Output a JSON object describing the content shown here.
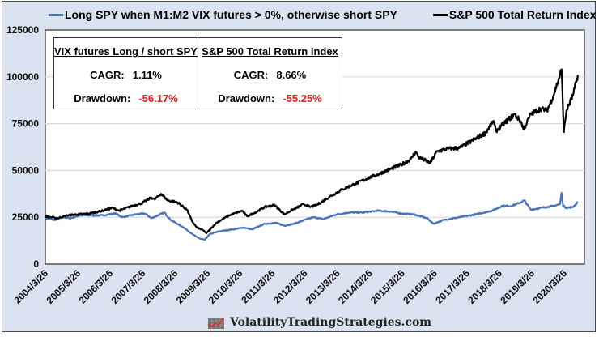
{
  "chart_data": {
    "type": "line",
    "title": "",
    "xlabel": "",
    "ylabel": "",
    "ylim": [
      0,
      125000
    ],
    "yticks": [
      0,
      25000,
      50000,
      75000,
      100000,
      125000
    ],
    "ytick_labels": [
      "0",
      "25000",
      "50000",
      "75000",
      "100000",
      "125000"
    ],
    "xlim": [
      2004.23,
      2020.85
    ],
    "xticks": [
      2004.23,
      2005.23,
      2006.23,
      2007.23,
      2008.23,
      2009.23,
      2010.23,
      2011.23,
      2012.23,
      2013.23,
      2014.23,
      2015.23,
      2016.23,
      2017.23,
      2018.23,
      2019.23,
      2020.23
    ],
    "xtick_labels": [
      "2004/3/26",
      "2005/3/26",
      "2006/3/26",
      "2007/3/26",
      "2008/3/26",
      "2009/3/26",
      "2010/3/26",
      "2011/3/26",
      "2012/3/26",
      "2013/3/26",
      "2014/3/26",
      "2015/3/26",
      "2016/3/26",
      "2017/3/26",
      "2018/3/26",
      "2019/3/26",
      "2020/3/26"
    ],
    "grid": "horizontal",
    "legend_position": "top",
    "series": [
      {
        "name": "Long SPY when M1:M2 VIX futures > 0%, otherwise short SPY",
        "color": "#4a72b8",
        "x": [
          2004.23,
          2004.5,
          2004.8,
          2005.0,
          2005.3,
          2005.6,
          2006.0,
          2006.4,
          2006.6,
          2007.0,
          2007.3,
          2007.5,
          2007.9,
          2008.1,
          2008.5,
          2008.8,
          2009.0,
          2009.15,
          2009.3,
          2009.6,
          2010.0,
          2010.35,
          2010.6,
          2011.0,
          2011.35,
          2011.6,
          2011.9,
          2012.3,
          2012.5,
          2012.8,
          2013.2,
          2013.6,
          2014.0,
          2014.5,
          2014.9,
          2015.2,
          2015.6,
          2016.0,
          2016.2,
          2016.5,
          2017.0,
          2017.5,
          2018.0,
          2018.2,
          2018.3,
          2018.6,
          2018.9,
          2019.0,
          2019.2,
          2019.5,
          2019.9,
          2020.1,
          2020.15,
          2020.2,
          2020.3,
          2020.5,
          2020.65
        ],
        "values": [
          24500,
          23500,
          25000,
          24500,
          26000,
          26000,
          26000,
          27000,
          25000,
          26500,
          27000,
          24500,
          27500,
          23500,
          19500,
          15500,
          13500,
          13000,
          16000,
          17500,
          18500,
          19500,
          18500,
          21500,
          22000,
          20500,
          21500,
          24000,
          25000,
          24000,
          26500,
          27500,
          27500,
          28500,
          28000,
          27000,
          26500,
          24500,
          21500,
          23500,
          25000,
          26500,
          28500,
          30000,
          31000,
          31000,
          33000,
          34000,
          29000,
          30000,
          31000,
          32000,
          38000,
          31000,
          30000,
          30500,
          33000
        ]
      },
      {
        "name": "S&P 500 Total Return Index",
        "color": "#000000",
        "x": [
          2004.23,
          2004.6,
          2004.9,
          2005.2,
          2005.6,
          2006.0,
          2006.3,
          2006.5,
          2006.9,
          2007.2,
          2007.5,
          2007.6,
          2007.8,
          2008.0,
          2008.3,
          2008.6,
          2008.75,
          2008.9,
          2009.1,
          2009.2,
          2009.5,
          2009.9,
          2010.3,
          2010.45,
          2010.7,
          2011.0,
          2011.3,
          2011.6,
          2011.8,
          2012.2,
          2012.4,
          2012.6,
          2013.0,
          2013.4,
          2013.8,
          2014.2,
          2014.5,
          2014.9,
          2015.2,
          2015.5,
          2015.65,
          2015.75,
          2016.1,
          2016.3,
          2016.6,
          2017.0,
          2017.4,
          2017.8,
          2018.05,
          2018.12,
          2018.3,
          2018.7,
          2018.9,
          2018.98,
          2019.2,
          2019.5,
          2019.7,
          2019.9,
          2020.1,
          2020.15,
          2020.22,
          2020.3,
          2020.5,
          2020.65
        ],
        "values": [
          25500,
          24500,
          26000,
          26500,
          27000,
          28500,
          30000,
          28500,
          31000,
          32500,
          35500,
          34500,
          37500,
          34000,
          33000,
          29000,
          23000,
          19500,
          18000,
          16500,
          22000,
          26000,
          28500,
          25500,
          27500,
          30500,
          31500,
          26500,
          28500,
          32000,
          30500,
          31500,
          36000,
          40000,
          43000,
          46000,
          48000,
          51000,
          53000,
          56000,
          60000,
          57000,
          54000,
          60000,
          61500,
          62000,
          66000,
          70000,
          76500,
          71000,
          74000,
          80000,
          76000,
          72000,
          80000,
          83000,
          82000,
          90000,
          101000,
          104000,
          70500,
          82000,
          90000,
          101000
        ]
      }
    ],
    "annotations": {
      "stats_table": [
        {
          "title": "VIX futures Long / short SPY",
          "cagr": "1.11%",
          "drawdown": "-56.17%"
        },
        {
          "title": "S&P 500 Total Return Index",
          "cagr": "8.66%",
          "drawdown": "-55.25%"
        }
      ]
    }
  },
  "stats": {
    "cagr_label": "CAGR:",
    "drawdown_label": "Drawdown:",
    "left_title": "VIX futures Long / short SPY",
    "left_cagr": "1.11%",
    "left_drawdown": "-56.17%",
    "right_title": "S&P 500 Total Return Index",
    "right_cagr": "8.66%",
    "right_drawdown": "-55.25%"
  },
  "legend": {
    "series_0": "Long SPY when M1:M2 VIX futures > 0%, otherwise short SPY",
    "series_1": "S&P 500 Total Return Index"
  },
  "brand": {
    "text": "VolatilityTradingStrategies.com",
    "icon": "chart-logo-icon"
  },
  "colors": {
    "background": "#dbe3f1",
    "blue_series": "#4a72b8",
    "black_series": "#000000",
    "negative": "#e02020"
  }
}
